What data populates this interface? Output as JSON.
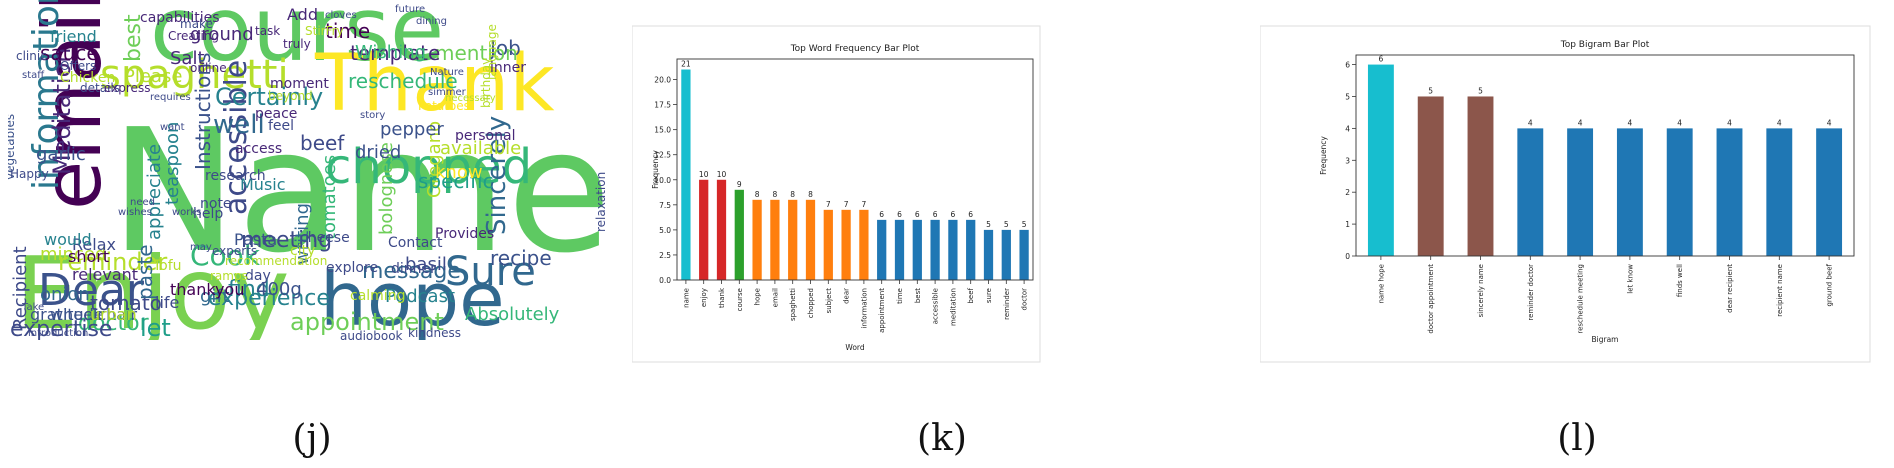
{
  "panels": {
    "j": {
      "label": "(j)"
    },
    "k": {
      "label": "(k)"
    },
    "l": {
      "label": "(l)"
    }
  },
  "wordcloud": {
    "words": [
      {
        "text": "Name",
        "color": "#5ec962"
      },
      {
        "text": "course",
        "color": "#5ec962"
      },
      {
        "text": "Enjoy",
        "color": "#7ad151"
      },
      {
        "text": "email",
        "color": "#440154"
      },
      {
        "text": "Thank",
        "color": "#fde725"
      },
      {
        "text": "hope",
        "color": "#31688e"
      },
      {
        "text": "spaghetti",
        "color": "#b5de2b"
      },
      {
        "text": "information",
        "color": "#2a788e"
      },
      {
        "text": "chopped",
        "color": "#35b779"
      },
      {
        "text": "Dear",
        "color": "#3b528b"
      },
      {
        "text": "Sure",
        "color": "#31688e"
      },
      {
        "text": "accessible",
        "color": "#3e4a89"
      },
      {
        "text": "appointment",
        "color": "#6ece58"
      },
      {
        "text": "Meditation",
        "color": "#482878"
      },
      {
        "text": "Certainly",
        "color": "#26828e"
      },
      {
        "text": "reminder",
        "color": "#b5de2b"
      },
      {
        "text": "Sincerely",
        "color": "#31688e"
      },
      {
        "text": "Cook",
        "color": "#35b779"
      },
      {
        "text": "meeting",
        "color": "#3e4a89"
      },
      {
        "text": "doctor",
        "color": "#35b779"
      },
      {
        "text": "experience",
        "color": "#26828e"
      },
      {
        "text": "tomato",
        "color": "#3e4a89"
      },
      {
        "text": "let",
        "color": "#1f9e89"
      },
      {
        "text": "expertise",
        "color": "#3e4a89"
      },
      {
        "text": "sauce",
        "color": "#440154"
      },
      {
        "text": "time",
        "color": "#440154"
      },
      {
        "text": "beef",
        "color": "#3e4a89"
      },
      {
        "text": "well",
        "color": "#31688e"
      },
      {
        "text": "best",
        "color": "#6ece58"
      },
      {
        "text": "Job",
        "color": "#3b528b"
      },
      {
        "text": "Salt",
        "color": "#482878"
      },
      {
        "text": "mention",
        "color": "#6ece58"
      },
      {
        "text": "template",
        "color": "#482878"
      },
      {
        "text": "reschedule",
        "color": "#35b779"
      },
      {
        "text": "recipe",
        "color": "#3b528b"
      },
      {
        "text": "message",
        "color": "#31688e"
      },
      {
        "text": "Podcast",
        "color": "#26828e"
      },
      {
        "text": "bolognese",
        "color": "#6ece58"
      },
      {
        "text": "Oregano",
        "color": "#b5de2b"
      },
      {
        "text": "find",
        "color": "#26828e"
      },
      {
        "text": "onion",
        "color": "#31688e"
      },
      {
        "text": "minced",
        "color": "#b5de2b"
      },
      {
        "text": "Recipient",
        "color": "#3e4a89"
      },
      {
        "text": "garlic",
        "color": "#3b528b"
      },
      {
        "text": "Please",
        "color": "#b5de2b"
      },
      {
        "text": "ground",
        "color": "#482878"
      },
      {
        "text": "paste",
        "color": "#31688e"
      },
      {
        "text": "tomatoes",
        "color": "#35b779"
      },
      {
        "text": "writing",
        "color": "#31688e"
      },
      {
        "text": "Pasta",
        "color": "#3b528b"
      },
      {
        "text": "Music",
        "color": "#26828e"
      },
      {
        "text": "teaspoon",
        "color": "#26828e"
      },
      {
        "text": "specific",
        "color": "#1f9e89"
      },
      {
        "text": "Absolutely",
        "color": "#35b779"
      },
      {
        "text": "basil",
        "color": "#3e4a89"
      },
      {
        "text": "400g",
        "color": "#3b528b"
      },
      {
        "text": "gift",
        "color": "#31688e"
      },
      {
        "text": "Wishing",
        "color": "#35b779"
      },
      {
        "text": "friend",
        "color": "#26828e"
      },
      {
        "text": "Add",
        "color": "#482878"
      },
      {
        "text": "dried",
        "color": "#3b528b"
      },
      {
        "text": "pepper",
        "color": "#3b528b"
      },
      {
        "text": "available",
        "color": "#b5de2b"
      },
      {
        "text": "know",
        "color": "#fde725"
      },
      {
        "text": "Instructions",
        "color": "#3b528b"
      },
      {
        "text": "appreciate",
        "color": "#26828e"
      },
      {
        "text": "vegetables",
        "color": "#3b528b"
      },
      {
        "text": "gratitude",
        "color": "#3b528b"
      },
      {
        "text": "wheelchair",
        "color": "#3b528b"
      },
      {
        "text": "Relax",
        "color": "#3e4a89"
      },
      {
        "text": "would",
        "color": "#26828e"
      },
      {
        "text": "thankyou",
        "color": "#440154"
      },
      {
        "text": "relevant",
        "color": "#482878"
      },
      {
        "text": "urban",
        "color": "#b5de2b"
      },
      {
        "text": "life",
        "color": "#3e4a89"
      },
      {
        "text": "short",
        "color": "#440154"
      },
      {
        "text": "Chicken",
        "color": "#b5de2b"
      },
      {
        "text": "Offers",
        "color": "#3e4a89"
      },
      {
        "text": "capabilities",
        "color": "#482878"
      },
      {
        "text": "Creating",
        "color": "#482878"
      },
      {
        "text": "make",
        "color": "#3e4a89"
      },
      {
        "text": "truly",
        "color": "#482878"
      },
      {
        "text": "moment",
        "color": "#482878"
      },
      {
        "text": "peace",
        "color": "#482878"
      },
      {
        "text": "feel",
        "color": "#3e4a89"
      },
      {
        "text": "access",
        "color": "#482878"
      },
      {
        "text": "research",
        "color": "#3e4a89"
      },
      {
        "text": "note",
        "color": "#3e4a89"
      },
      {
        "text": "help",
        "color": "#3e4a89"
      },
      {
        "text": "Tofu",
        "color": "#b5de2b"
      },
      {
        "text": "dinner",
        "color": "#3e4a89"
      },
      {
        "text": "Contact",
        "color": "#3e4a89"
      },
      {
        "text": "explore",
        "color": "#3e4a89"
      },
      {
        "text": "cheese",
        "color": "#3e4a89"
      },
      {
        "text": "city",
        "color": "#b5de2b"
      },
      {
        "text": "calming",
        "color": "#b5de2b"
      },
      {
        "text": "day",
        "color": "#3e4a89"
      },
      {
        "text": "Provides",
        "color": "#482878"
      },
      {
        "text": "audiobook",
        "color": "#3e4a89"
      },
      {
        "text": "kindness",
        "color": "#3e4a89"
      },
      {
        "text": "language",
        "color": "#b5de2b"
      },
      {
        "text": "birthday",
        "color": "#b5de2b"
      },
      {
        "text": "relaxation",
        "color": "#3e4a89"
      },
      {
        "text": "inner",
        "color": "#482878"
      },
      {
        "text": "personal",
        "color": "#482878"
      },
      {
        "text": "Potatoes",
        "color": "#fde725"
      },
      {
        "text": "StirFry",
        "color": "#b5de2b"
      },
      {
        "text": "clinic",
        "color": "#3e4a89"
      },
      {
        "text": "staff",
        "color": "#3e4a89"
      },
      {
        "text": "details",
        "color": "#3e4a89"
      },
      {
        "text": "express",
        "color": "#482878"
      },
      {
        "text": "online",
        "color": "#482878"
      },
      {
        "text": "task",
        "color": "#482878"
      },
      {
        "text": "beyond",
        "color": "#b5de2b"
      },
      {
        "text": "requires",
        "color": "#3e4a89"
      },
      {
        "text": "want",
        "color": "#3e4a89"
      },
      {
        "text": "works",
        "color": "#3e4a89"
      },
      {
        "text": "need",
        "color": "#3e4a89"
      },
      {
        "text": "wishes",
        "color": "#3e4a89"
      },
      {
        "text": "Happy",
        "color": "#3e4a89"
      },
      {
        "text": "recommendation",
        "color": "#b5de2b"
      },
      {
        "text": "experts",
        "color": "#3e4a89"
      },
      {
        "text": "ramps",
        "color": "#b5de2b"
      },
      {
        "text": "future",
        "color": "#3e4a89"
      },
      {
        "text": "dining",
        "color": "#3e4a89"
      },
      {
        "text": "cloves",
        "color": "#3e4a89"
      },
      {
        "text": "Nature",
        "color": "#3e4a89"
      },
      {
        "text": "simmer",
        "color": "#3e4a89"
      },
      {
        "text": "necessary",
        "color": "#b5de2b"
      },
      {
        "text": "story",
        "color": "#3e4a89"
      },
      {
        "text": "may",
        "color": "#3e4a89"
      },
      {
        "text": "Take",
        "color": "#3e4a89"
      },
      {
        "text": "introduction",
        "color": "#3e4a89"
      }
    ]
  },
  "chart_data": [
    {
      "type": "bar",
      "title": "Top Word Frequency Bar Plot",
      "xlabel": "Word",
      "ylabel": "Frequency",
      "ylim": [
        0,
        22.05
      ],
      "yticks": [
        "0.0",
        "2.5",
        "5.0",
        "7.5",
        "10.0",
        "12.5",
        "15.0",
        "17.5",
        "20.0"
      ],
      "categories": [
        "name",
        "enjoy",
        "thank",
        "course",
        "hope",
        "email",
        "spaghetti",
        "chopped",
        "subject",
        "dear",
        "information",
        "appointment",
        "time",
        "best",
        "accessible",
        "meditation",
        "beef",
        "sure",
        "reminder",
        "doctor"
      ],
      "values": [
        21,
        10,
        10,
        9,
        8,
        8,
        8,
        8,
        7,
        7,
        7,
        6,
        6,
        6,
        6,
        6,
        6,
        5,
        5,
        5
      ],
      "data_labels": [
        "21",
        "10",
        "10",
        "9",
        "8",
        "8",
        "8",
        "8",
        "7",
        "7",
        "7",
        "6",
        "6",
        "6",
        "6",
        "6",
        "6",
        "5",
        "5",
        "5"
      ],
      "colors": {
        "21": "#17becf",
        "10": "#d62728",
        "9": "#2ca02c",
        "8": "#ff7f0e",
        "7": "#ff7f0e",
        "6": "#1f77b4",
        "5": "#1f77b4"
      }
    },
    {
      "type": "bar",
      "title": "Top Bigram Bar Plot",
      "xlabel": "Bigram",
      "ylabel": "Frequency",
      "ylim": [
        0,
        6.3
      ],
      "yticks": [
        "0",
        "1",
        "2",
        "3",
        "4",
        "5",
        "6"
      ],
      "categories": [
        "name hope",
        "doctor appointment",
        "sincerely name",
        "reminder doctor",
        "reschedule meeting",
        "let know",
        "finds well",
        "dear recipient",
        "recipient name",
        "ground beef"
      ],
      "values": [
        6,
        5,
        5,
        4,
        4,
        4,
        4,
        4,
        4,
        4
      ],
      "data_labels": [
        "6",
        "5",
        "5",
        "4",
        "4",
        "4",
        "4",
        "4",
        "4",
        "4"
      ],
      "colors": {
        "6": "#17becf",
        "5": "#8c564b",
        "4": "#1f77b4"
      }
    }
  ]
}
